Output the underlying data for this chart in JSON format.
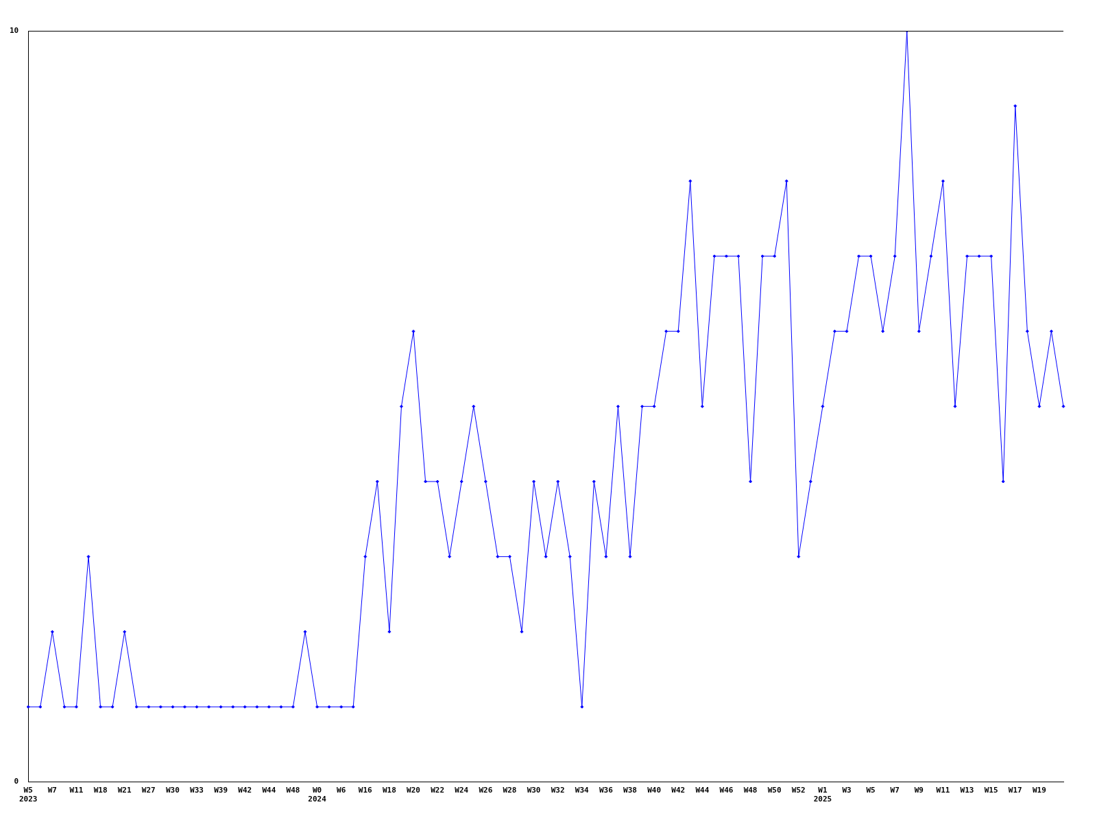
{
  "chart_data": {
    "type": "line",
    "categories": [
      "W5\n2023",
      null,
      "W7",
      null,
      "W11",
      null,
      "W18",
      null,
      "W21",
      null,
      "W27",
      null,
      "W30",
      null,
      "W33",
      null,
      "W39",
      null,
      "W42",
      null,
      "W44",
      null,
      "W48",
      null,
      "W0\n2024",
      null,
      "W6",
      null,
      "W16",
      null,
      "W18",
      null,
      "W20",
      null,
      "W22",
      null,
      "W24",
      null,
      "W26",
      null,
      "W28",
      null,
      "W30",
      null,
      "W32",
      null,
      "W34",
      null,
      "W36",
      null,
      "W38",
      null,
      "W40",
      null,
      "W42",
      null,
      "W44",
      null,
      "W46",
      null,
      "W48",
      null,
      "W50",
      null,
      "W52",
      null,
      "W1\n2025",
      null,
      "W3",
      null,
      "W5",
      null,
      "W7",
      null,
      "W9",
      null,
      "W11",
      null,
      "W13",
      null,
      "W15",
      null,
      "W17",
      null,
      "W19",
      null,
      null
    ],
    "series": [
      {
        "color": "#0000ff",
        "values": [
          1,
          1,
          2,
          1,
          1,
          3,
          1,
          1,
          2,
          1,
          1,
          1,
          1,
          1,
          1,
          1,
          1,
          1,
          1,
          1,
          1,
          1,
          1,
          2,
          1,
          1,
          1,
          1,
          3,
          4,
          2,
          5,
          6,
          4,
          4,
          3,
          4,
          5,
          4,
          3,
          3,
          2,
          4,
          3,
          4,
          3,
          1,
          4,
          3,
          5,
          3,
          5,
          5,
          6,
          6,
          8,
          5,
          7,
          7,
          7,
          4,
          7,
          7,
          8,
          3,
          4,
          5,
          6,
          6,
          7,
          7,
          6,
          7,
          10,
          6,
          7,
          8,
          5,
          7,
          7,
          7,
          4,
          9,
          6,
          5,
          6,
          5
        ]
      }
    ],
    "ylim": [
      0,
      10
    ],
    "yticks": [
      0,
      10
    ],
    "grid": false,
    "legend": false,
    "marker": "diamond",
    "line_style": "solid"
  }
}
